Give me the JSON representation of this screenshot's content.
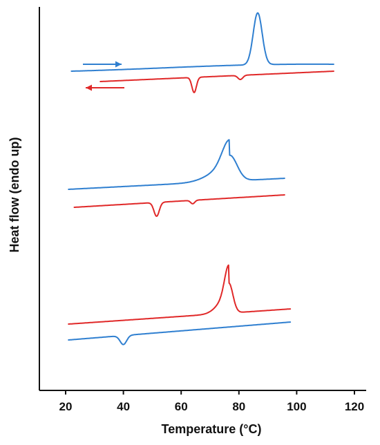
{
  "chart_data": {
    "type": "line",
    "title": "",
    "xlabel": "Temperature (°C)",
    "ylabel": "Heat flow (endo up)",
    "xlim": [
      10,
      125
    ],
    "xticks": [
      20,
      40,
      60,
      80,
      100,
      120
    ],
    "y_ticks_shown": false,
    "grid": false,
    "legend": "none",
    "colors": {
      "heating": "#2f7fd0",
      "cooling": "#e02828",
      "axis": "#111111"
    },
    "direction_arrows": [
      {
        "direction": "heating (left to right)",
        "color": "#2f7fd0"
      },
      {
        "direction": "cooling (right to left)",
        "color": "#e02828"
      }
    ],
    "series": [
      {
        "group": "top",
        "color": "#2f7fd0",
        "x_range": [
          22,
          113
        ],
        "peaks": [
          {
            "x": 86.5,
            "type": "endothermic",
            "height": "large"
          }
        ]
      },
      {
        "group": "top",
        "color": "#e02828",
        "x_range": [
          32,
          113
        ],
        "peaks": [
          {
            "x": 64.5,
            "type": "exothermic",
            "height": "large"
          },
          {
            "x": 80.5,
            "type": "exothermic",
            "height": "small"
          }
        ]
      },
      {
        "group": "middle",
        "color": "#2f7fd0",
        "x_range": [
          21,
          96
        ],
        "peaks": [
          {
            "x": 76.8,
            "type": "endothermic",
            "height": "large",
            "shape": "broad shoulder"
          }
        ]
      },
      {
        "group": "middle",
        "color": "#e02828",
        "x_range": [
          23,
          96
        ],
        "peaks": [
          {
            "x": 51.5,
            "type": "exothermic",
            "height": "large"
          },
          {
            "x": 64.0,
            "type": "exothermic",
            "height": "small"
          }
        ]
      },
      {
        "group": "bottom",
        "color": "#e02828",
        "x_range": [
          21,
          98
        ],
        "peaks": [
          {
            "x": 76.5,
            "type": "endothermic",
            "height": "large",
            "shape": "shoulder near 73"
          }
        ]
      },
      {
        "group": "bottom",
        "color": "#2f7fd0",
        "x_range": [
          21,
          98
        ],
        "peaks": [
          {
            "x": 40.0,
            "type": "exothermic",
            "height": "medium"
          }
        ]
      }
    ]
  }
}
